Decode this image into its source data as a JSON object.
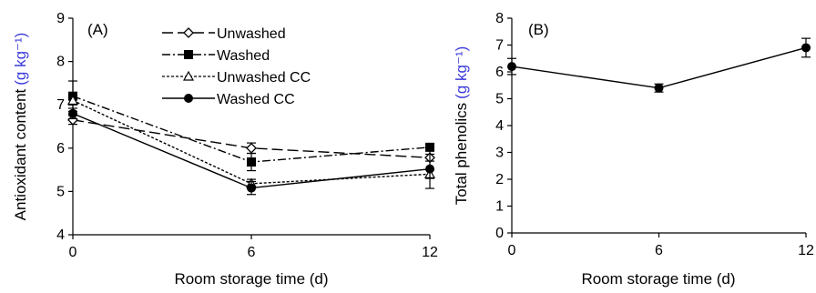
{
  "chart_data": [
    {
      "type": "line",
      "panel_label": "(A)",
      "x": [
        0,
        6,
        12
      ],
      "xlim": [
        0,
        12
      ],
      "ylim": [
        4,
        9
      ],
      "xticks": [
        "0",
        "6",
        "12"
      ],
      "yticks": [
        "4",
        "5",
        "6",
        "7",
        "8",
        "9"
      ],
      "xlabel": "Room storage time (d)",
      "ylabel": "Antioxidant content",
      "ylabel_unit": "(g kg⁻¹)",
      "legend_position": "top-center",
      "series": [
        {
          "name": "Unwashed",
          "values": [
            6.65,
            6.0,
            5.78
          ],
          "errors": [
            0.1,
            0.12,
            0.08
          ],
          "marker": "diamond-open",
          "dash": "long-dash"
        },
        {
          "name": "Washed",
          "values": [
            7.2,
            5.68,
            6.02
          ],
          "errors": [
            0.35,
            0.2,
            0.08
          ],
          "marker": "square-filled",
          "dash": "dash-dot"
        },
        {
          "name": "Unwashed CC",
          "values": [
            7.1,
            5.18,
            5.4
          ],
          "errors": [
            0.1,
            0.1,
            0.1
          ],
          "marker": "triangle-open",
          "dash": "short-dash"
        },
        {
          "name": "Washed CC",
          "values": [
            6.8,
            5.08,
            5.52
          ],
          "errors": [
            0.12,
            0.15,
            0.45
          ],
          "marker": "circle-filled",
          "dash": "solid"
        }
      ]
    },
    {
      "type": "line",
      "panel_label": "(B)",
      "x": [
        0,
        6,
        12
      ],
      "xlim": [
        0,
        12
      ],
      "ylim": [
        0,
        8
      ],
      "xticks": [
        "0",
        "6",
        "12"
      ],
      "yticks": [
        "0",
        "1",
        "2",
        "3",
        "4",
        "5",
        "6",
        "7",
        "8"
      ],
      "xlabel": "Room storage time (d)",
      "ylabel": "Total phenolics",
      "ylabel_unit": "(g kg⁻¹)",
      "series": [
        {
          "values": [
            6.2,
            5.4,
            6.9
          ],
          "errors": [
            0.3,
            0.15,
            0.35
          ],
          "marker": "circle-filled",
          "dash": "solid"
        }
      ]
    }
  ]
}
